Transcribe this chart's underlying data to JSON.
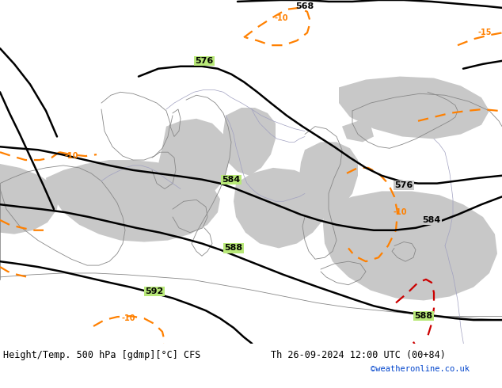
{
  "title_left": "Height/Temp. 500 hPa [gdmp][°C] CFS",
  "title_right": "Th 26-09-2024 12:00 UTC (00+84)",
  "credit": "©weatheronline.co.uk",
  "bg_color": "#b8e878",
  "sea_color": "#c8c8c8",
  "black_color": "#000000",
  "orange_color": "#ff8000",
  "red_color": "#cc0000",
  "green_color": "#78b830",
  "coast_color": "#888888",
  "border_color": "#a0a0c0",
  "font_size": 8.5,
  "label_size": 8,
  "credit_size": 7.5
}
